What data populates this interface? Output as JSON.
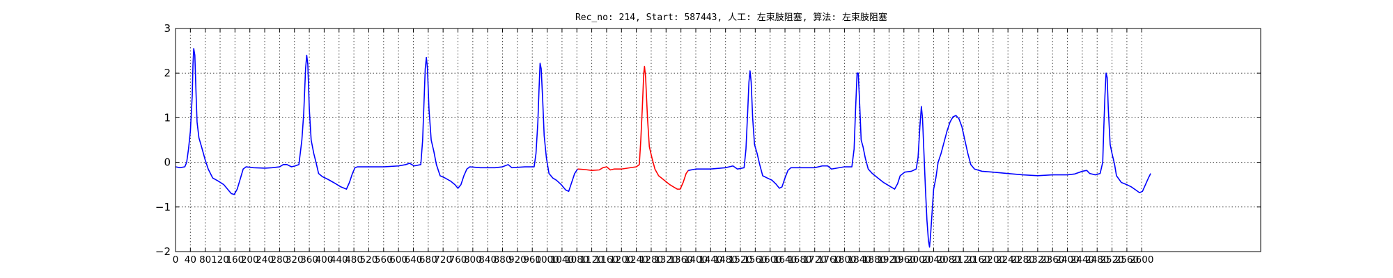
{
  "chart_data": {
    "type": "line",
    "title": "Rec_no: 214, Start: 587443, 人工: 左束肢阻塞, 算法: 左束肢阻塞",
    "xlabel": "",
    "ylabel": "",
    "xlim": [
      0,
      2920
    ],
    "ylim": [
      -2,
      3
    ],
    "yticks": [
      3,
      2,
      1,
      0,
      -1,
      -2
    ],
    "ytick_labels": [
      "3",
      "2",
      "1",
      "0",
      "−1",
      "−2"
    ],
    "xtick_step": 40,
    "xtick_max": 2600,
    "xtick_labels": [
      "0",
      "40",
      "80",
      "120",
      "160",
      "200",
      "240",
      "280",
      "320",
      "360",
      "400",
      "440",
      "480",
      "520",
      "560",
      "600",
      "640",
      "680",
      "720",
      "760",
      "800",
      "840",
      "880",
      "920",
      "960",
      "1000",
      "1040",
      "1080",
      "1120",
      "1160",
      "1200",
      "1240",
      "1280",
      "1320",
      "1360",
      "1400",
      "1440",
      "1480",
      "1520",
      "1560",
      "1600",
      "1640",
      "1680",
      "1720",
      "1760",
      "1800",
      "1840",
      "1880",
      "1920",
      "1960",
      "2000",
      "2040",
      "2080",
      "2120",
      "2160",
      "2200",
      "2240",
      "2280",
      "2320",
      "2360",
      "2400",
      "2440",
      "2480",
      "2520",
      "2560",
      "2600"
    ],
    "grid": true,
    "series": [
      {
        "color": "#0000ff",
        "segments": [
          [
            [
              0,
              -0.1
            ],
            [
              12,
              -0.12
            ],
            [
              25,
              -0.1
            ],
            [
              30,
              0.0
            ],
            [
              35,
              0.3
            ],
            [
              40,
              0.7
            ],
            [
              45,
              1.5
            ],
            [
              47,
              2.2
            ],
            [
              49,
              2.55
            ],
            [
              52,
              2.4
            ],
            [
              55,
              1.6
            ],
            [
              58,
              0.9
            ],
            [
              63,
              0.55
            ],
            [
              70,
              0.35
            ],
            [
              80,
              0.05
            ],
            [
              88,
              -0.15
            ],
            [
              100,
              -0.35
            ],
            [
              115,
              -0.42
            ],
            [
              130,
              -0.5
            ],
            [
              140,
              -0.6
            ],
            [
              150,
              -0.7
            ],
            [
              158,
              -0.72
            ],
            [
              166,
              -0.6
            ],
            [
              175,
              -0.35
            ],
            [
              182,
              -0.15
            ],
            [
              190,
              -0.1
            ],
            [
              210,
              -0.12
            ],
            [
              240,
              -0.13
            ],
            [
              260,
              -0.12
            ],
            [
              280,
              -0.1
            ],
            [
              290,
              -0.05
            ],
            [
              300,
              -0.05
            ],
            [
              312,
              -0.1
            ],
            [
              322,
              -0.08
            ],
            [
              332,
              -0.05
            ],
            [
              340,
              0.5
            ],
            [
              345,
              1.1
            ],
            [
              350,
              2.1
            ],
            [
              353,
              2.4
            ],
            [
              356,
              2.2
            ],
            [
              360,
              1.2
            ],
            [
              365,
              0.5
            ],
            [
              372,
              0.2
            ],
            [
              378,
              0.0
            ],
            [
              385,
              -0.25
            ],
            [
              395,
              -0.32
            ],
            [
              410,
              -0.38
            ],
            [
              425,
              -0.45
            ],
            [
              445,
              -0.55
            ],
            [
              460,
              -0.6
            ],
            [
              468,
              -0.45
            ],
            [
              476,
              -0.25
            ],
            [
              483,
              -0.12
            ],
            [
              490,
              -0.1
            ],
            [
              520,
              -0.1
            ],
            [
              560,
              -0.1
            ],
            [
              600,
              -0.08
            ],
            [
              620,
              -0.05
            ],
            [
              630,
              -0.02
            ],
            [
              642,
              -0.08
            ],
            [
              660,
              -0.05
            ],
            [
              665,
              0.5
            ],
            [
              668,
              1.2
            ],
            [
              672,
              2.1
            ],
            [
              675,
              2.35
            ],
            [
              678,
              2.1
            ],
            [
              682,
              1.2
            ],
            [
              688,
              0.5
            ],
            [
              695,
              0.25
            ],
            [
              702,
              -0.05
            ],
            [
              712,
              -0.3
            ],
            [
              725,
              -0.35
            ],
            [
              740,
              -0.42
            ],
            [
              752,
              -0.5
            ],
            [
              760,
              -0.58
            ],
            [
              768,
              -0.5
            ],
            [
              776,
              -0.3
            ],
            [
              784,
              -0.15
            ],
            [
              792,
              -0.1
            ],
            [
              820,
              -0.12
            ],
            [
              860,
              -0.12
            ],
            [
              880,
              -0.1
            ],
            [
              895,
              -0.05
            ],
            [
              905,
              -0.12
            ],
            [
              940,
              -0.1
            ],
            [
              965,
              -0.1
            ],
            [
              970,
              0.2
            ],
            [
              975,
              0.9
            ],
            [
              978,
              1.6
            ],
            [
              981,
              2.22
            ],
            [
              984,
              2.1
            ],
            [
              988,
              1.4
            ],
            [
              992,
              0.6
            ],
            [
              998,
              0.1
            ],
            [
              1005,
              -0.25
            ],
            [
              1015,
              -0.35
            ],
            [
              1025,
              -0.4
            ],
            [
              1038,
              -0.5
            ],
            [
              1050,
              -0.62
            ],
            [
              1058,
              -0.65
            ],
            [
              1066,
              -0.45
            ],
            [
              1074,
              -0.25
            ],
            [
              1082,
              -0.15
            ]
          ]
        ]
      },
      {
        "color": "#ff0000",
        "segments": [
          [
            [
              1082,
              -0.15
            ],
            [
              1100,
              -0.16
            ],
            [
              1120,
              -0.18
            ],
            [
              1140,
              -0.17
            ],
            [
              1150,
              -0.12
            ],
            [
              1160,
              -0.1
            ],
            [
              1170,
              -0.17
            ],
            [
              1180,
              -0.15
            ],
            [
              1200,
              -0.15
            ],
            [
              1240,
              -0.1
            ],
            [
              1248,
              -0.05
            ],
            [
              1252,
              0.5
            ],
            [
              1256,
              1.2
            ],
            [
              1260,
              2.0
            ],
            [
              1262,
              2.15
            ],
            [
              1265,
              1.9
            ],
            [
              1270,
              1.0
            ],
            [
              1275,
              0.35
            ],
            [
              1282,
              0.1
            ],
            [
              1290,
              -0.15
            ],
            [
              1300,
              -0.3
            ],
            [
              1315,
              -0.4
            ],
            [
              1330,
              -0.5
            ],
            [
              1340,
              -0.55
            ],
            [
              1350,
              -0.6
            ],
            [
              1358,
              -0.6
            ],
            [
              1366,
              -0.45
            ],
            [
              1374,
              -0.25
            ],
            [
              1380,
              -0.18
            ]
          ]
        ]
      },
      {
        "color": "#0000ff",
        "segments": [
          [
            [
              1380,
              -0.18
            ],
            [
              1400,
              -0.15
            ],
            [
              1440,
              -0.15
            ],
            [
              1480,
              -0.12
            ],
            [
              1500,
              -0.08
            ],
            [
              1512,
              -0.15
            ],
            [
              1530,
              -0.12
            ],
            [
              1535,
              0.3
            ],
            [
              1540,
              1.2
            ],
            [
              1543,
              1.8
            ],
            [
              1546,
              2.05
            ],
            [
              1549,
              1.8
            ],
            [
              1553,
              1.0
            ],
            [
              1558,
              0.4
            ],
            [
              1565,
              0.2
            ],
            [
              1572,
              -0.05
            ],
            [
              1580,
              -0.3
            ],
            [
              1592,
              -0.35
            ],
            [
              1605,
              -0.4
            ],
            [
              1615,
              -0.48
            ],
            [
              1625,
              -0.58
            ],
            [
              1632,
              -0.55
            ],
            [
              1640,
              -0.35
            ],
            [
              1648,
              -0.18
            ],
            [
              1656,
              -0.12
            ],
            [
              1680,
              -0.12
            ],
            [
              1720,
              -0.12
            ],
            [
              1740,
              -0.08
            ],
            [
              1755,
              -0.08
            ],
            [
              1765,
              -0.15
            ],
            [
              1800,
              -0.1
            ],
            [
              1820,
              -0.1
            ],
            [
              1826,
              0.3
            ],
            [
              1830,
              1.2
            ],
            [
              1834,
              2.0
            ],
            [
              1837,
              2.0
            ],
            [
              1840,
              1.5
            ],
            [
              1845,
              0.5
            ],
            [
              1850,
              0.35
            ],
            [
              1856,
              0.1
            ],
            [
              1864,
              -0.15
            ],
            [
              1875,
              -0.25
            ],
            [
              1890,
              -0.35
            ],
            [
              1905,
              -0.45
            ],
            [
              1915,
              -0.5
            ],
            [
              1925,
              -0.55
            ],
            [
              1935,
              -0.6
            ],
            [
              1943,
              -0.48
            ],
            [
              1950,
              -0.3
            ],
            [
              1962,
              -0.22
            ],
            [
              1980,
              -0.2
            ],
            [
              1993,
              -0.15
            ],
            [
              1998,
              0.1
            ],
            [
              2003,
              0.8
            ],
            [
              2007,
              1.25
            ],
            [
              2010,
              1.0
            ],
            [
              2014,
              0.2
            ],
            [
              2018,
              -0.6
            ],
            [
              2022,
              -1.3
            ],
            [
              2026,
              -1.75
            ],
            [
              2029,
              -1.9
            ],
            [
              2032,
              -1.6
            ],
            [
              2036,
              -1.1
            ],
            [
              2040,
              -0.6
            ],
            [
              2046,
              -0.35
            ],
            [
              2052,
              0.0
            ],
            [
              2060,
              0.2
            ],
            [
              2068,
              0.45
            ],
            [
              2076,
              0.7
            ],
            [
              2084,
              0.9
            ],
            [
              2092,
              1.02
            ],
            [
              2100,
              1.05
            ],
            [
              2108,
              0.98
            ],
            [
              2116,
              0.8
            ],
            [
              2124,
              0.5
            ],
            [
              2132,
              0.2
            ],
            [
              2140,
              -0.05
            ],
            [
              2150,
              -0.15
            ],
            [
              2170,
              -0.2
            ],
            [
              2200,
              -0.22
            ],
            [
              2240,
              -0.25
            ],
            [
              2280,
              -0.28
            ],
            [
              2320,
              -0.3
            ],
            [
              2360,
              -0.28
            ],
            [
              2400,
              -0.28
            ],
            [
              2420,
              -0.26
            ],
            [
              2440,
              -0.2
            ],
            [
              2452,
              -0.18
            ],
            [
              2460,
              -0.25
            ],
            [
              2475,
              -0.28
            ],
            [
              2488,
              -0.25
            ],
            [
              2495,
              0.0
            ],
            [
              2498,
              0.8
            ],
            [
              2501,
              1.5
            ],
            [
              2504,
              2.0
            ],
            [
              2507,
              1.9
            ],
            [
              2510,
              1.2
            ],
            [
              2515,
              0.4
            ],
            [
              2520,
              0.2
            ],
            [
              2527,
              -0.05
            ],
            [
              2532,
              -0.3
            ],
            [
              2545,
              -0.45
            ],
            [
              2560,
              -0.5
            ],
            [
              2572,
              -0.55
            ],
            [
              2584,
              -0.62
            ],
            [
              2594,
              -0.68
            ],
            [
              2602,
              -0.65
            ],
            [
              2610,
              -0.5
            ],
            [
              2618,
              -0.35
            ],
            [
              2624,
              -0.25
            ]
          ]
        ]
      }
    ]
  }
}
